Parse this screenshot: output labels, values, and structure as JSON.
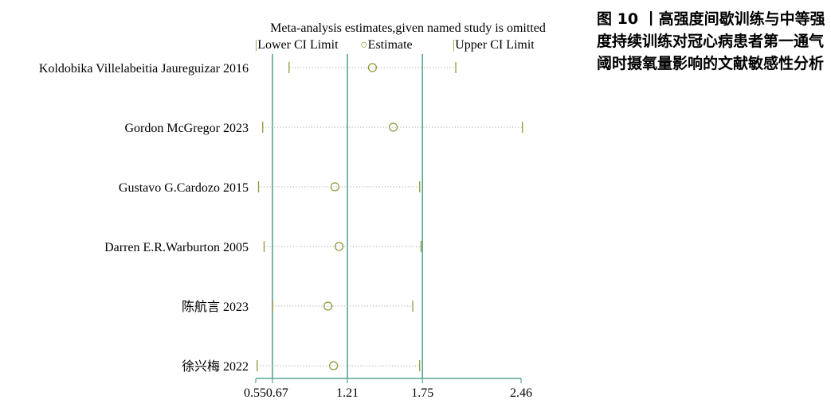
{
  "caption": "图 10 丨高强度间歇训练与中等强度持续训练对冠心病患者第一通气阈时摄氧量影响的文献敏感性分析",
  "chart_data": {
    "type": "forest-sensitivity",
    "title": "Meta-analysis estimates,given named study is omitted",
    "legend": {
      "placement": "top",
      "items": [
        {
          "symbol": "|",
          "label": "Lower CI Limit"
        },
        {
          "symbol": "○",
          "label": "Estimate"
        },
        {
          "symbol": "|",
          "label": "Upper CI Limit"
        }
      ]
    },
    "colors": {
      "reference_lines": "#5aa59a",
      "markers": "#8f9a3a",
      "axis": "#5aa59a",
      "dotted": "#a7a7a7"
    },
    "xlim": [
      0.55,
      2.46
    ],
    "x_ticks": [
      0.55,
      0.67,
      1.21,
      1.75,
      2.46
    ],
    "x_tick_labels": [
      "0.55",
      "0.67",
      "1.21",
      "1.75",
      "2.46"
    ],
    "reference_lines": [
      0.67,
      1.21,
      1.75
    ],
    "studies": [
      {
        "name": "Koldobika Villelabeitia Jaureguizar 2016",
        "lower": 0.79,
        "estimate": 1.39,
        "upper": 1.99
      },
      {
        "name": "Gordon McGregor 2023",
        "lower": 0.6,
        "estimate": 1.54,
        "upper": 2.47
      },
      {
        "name": "Gustavo G.Cardozo 2015",
        "lower": 0.57,
        "estimate": 1.12,
        "upper": 1.73
      },
      {
        "name": "Darren E.R.Warburton 2005",
        "lower": 0.61,
        "estimate": 1.15,
        "upper": 1.74
      },
      {
        "name": "陈航言 2023",
        "lower": 0.67,
        "estimate": 1.07,
        "upper": 1.68
      },
      {
        "name": "徐兴梅 2022",
        "lower": 0.56,
        "estimate": 1.11,
        "upper": 1.73
      }
    ]
  }
}
